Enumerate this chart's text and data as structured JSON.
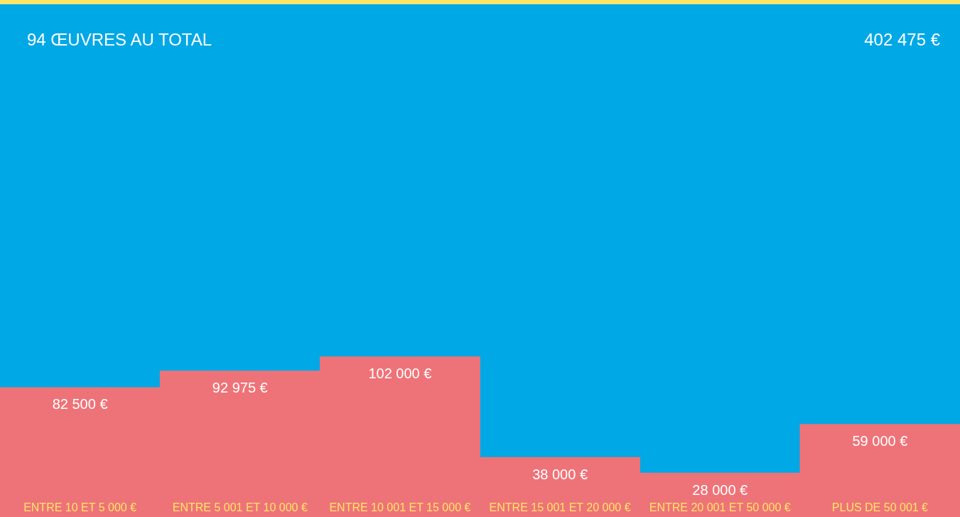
{
  "chart_data": {
    "type": "bar",
    "title": "94 ŒUVRES AU TOTAL",
    "annotations": [
      "402 475 €"
    ],
    "categories": [
      "ENTRE 10 ET 5 000 €",
      "ENTRE 5 001 ET 10 000 €",
      "ENTRE 10 001 ET 15 000 €",
      "ENTRE 15 001 ET 20 000 €",
      "ENTRE 20 001 ET 50 000 €",
      "PLUS DE 50 001 €"
    ],
    "values": [
      82500,
      92975,
      102000,
      38000,
      28000,
      59000
    ],
    "value_labels": [
      "82 500 €",
      "92 975 €",
      "102 000 €",
      "38 000 €",
      "28 000 €",
      "59 000 €"
    ],
    "color": "#ee7378",
    "grid": false,
    "legend": false
  }
}
